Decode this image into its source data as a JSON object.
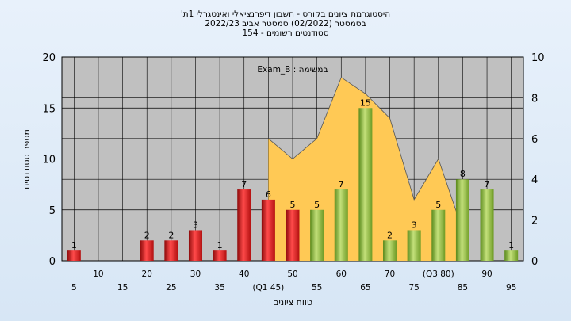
{
  "chart_data": {
    "type": "bar",
    "title": [
      "'היסטוגרמת ציונים בקורס - חשבון דיפרנציאלי ואינטגרלי 1ת",
      "בסמסטר  (02/2022)  סמסטר אביב 2022/23",
      "סטודנטים רשומים - 154"
    ],
    "legend_label": "Exam_B : במשימה",
    "xlabel": "טווח ציונים",
    "ylabel": "מספר סטודנטים",
    "ylim": [
      0,
      20
    ],
    "y2lim": [
      0,
      10
    ],
    "yticks": [
      "0",
      "5",
      "10",
      "15",
      "20"
    ],
    "y2ticks": [
      "0",
      "2",
      "4",
      "6",
      "8",
      "10"
    ],
    "x_tick_labels": [
      "5",
      "10",
      "15",
      "20",
      "25",
      "30",
      "35",
      "40",
      "(Q1 45)",
      "50",
      "55",
      "60",
      "65",
      "70",
      "75",
      "(Q3 80)",
      "85",
      "90",
      "95"
    ],
    "categories": [
      "5",
      "10",
      "15",
      "20",
      "25",
      "30",
      "35",
      "40",
      "45",
      "50",
      "55",
      "60",
      "65",
      "70",
      "75",
      "80",
      "85",
      "90",
      "95"
    ],
    "values": [
      1,
      0,
      0,
      2,
      2,
      3,
      1,
      7,
      6,
      5,
      5,
      7,
      15,
      2,
      3,
      5,
      8,
      7,
      1
    ],
    "bar_colors": [
      "red",
      "red",
      "red",
      "red",
      "red",
      "red",
      "red",
      "red",
      "red",
      "red",
      "green",
      "green",
      "green",
      "green",
      "green",
      "green",
      "green",
      "green",
      "green"
    ],
    "area_series": {
      "axis": "right",
      "x": [
        45,
        50,
        55,
        60,
        65,
        70,
        75,
        80,
        85
      ],
      "values": [
        6,
        5,
        6,
        9,
        8.2,
        7,
        3,
        5,
        1.5
      ]
    },
    "grid": true
  },
  "colors": {
    "plot_bg": "#c0c0c0",
    "area": "#ffc955",
    "red_bar": "#e01818",
    "green_bar": "#8cbb38",
    "grid": "#000000"
  }
}
